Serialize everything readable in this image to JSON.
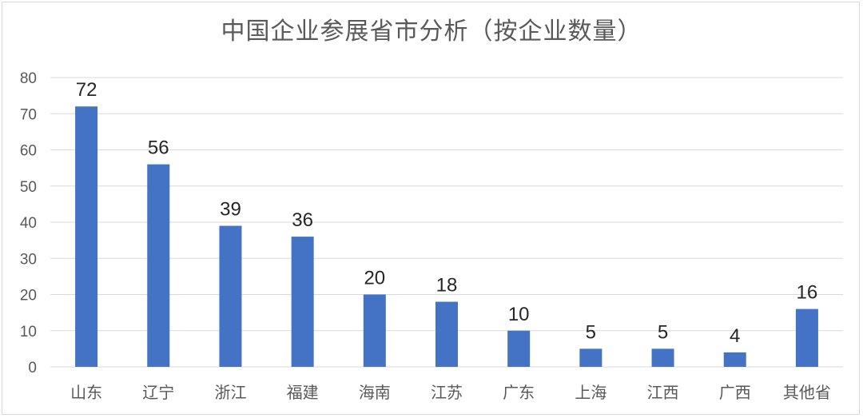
{
  "chart_data": {
    "type": "bar",
    "title": "中国企业参展省市分析（按企业数量）",
    "categories": [
      "山东",
      "辽宁",
      "浙江",
      "福建",
      "海南",
      "江苏",
      "广东",
      "上海",
      "江西",
      "广西",
      "其他省"
    ],
    "values": [
      72,
      56,
      39,
      36,
      20,
      18,
      10,
      5,
      5,
      4,
      16
    ],
    "ylim": [
      0,
      80
    ],
    "yticks": [
      0,
      10,
      20,
      30,
      40,
      50,
      60,
      70,
      80
    ],
    "grid": true,
    "legend": "none",
    "colors": {
      "bar": "#4472c4",
      "grid": "#d9d9d9",
      "text": "#595959"
    }
  }
}
